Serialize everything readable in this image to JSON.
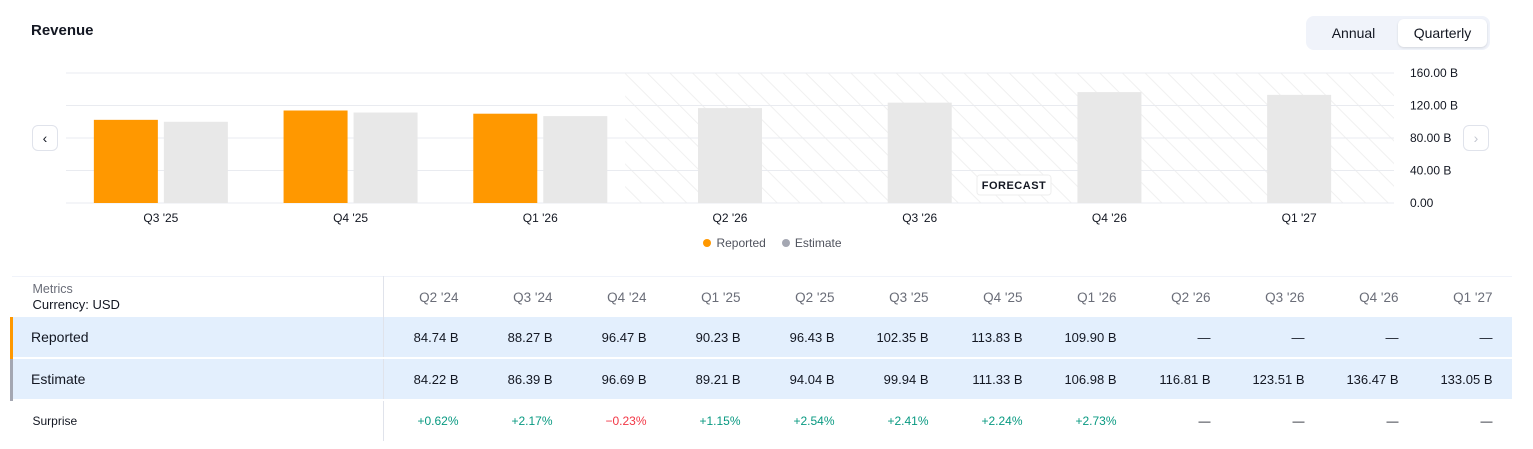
{
  "header": {
    "title": "Revenue",
    "period_toggle": {
      "options": [
        "Annual",
        "Quarterly"
      ],
      "selected": "Quarterly"
    }
  },
  "nav": {
    "prev_icon": "chevron-left-icon",
    "next_icon": "chevron-right-icon"
  },
  "chart_data": {
    "type": "bar",
    "categories": [
      "Q3 '25",
      "Q4 '25",
      "Q1 '26",
      "Q2 '26",
      "Q3 '26",
      "Q4 '26",
      "Q1 '27"
    ],
    "series": [
      {
        "name": "Reported",
        "color": "#ff9800",
        "values": [
          102.35,
          113.83,
          109.9,
          null,
          null,
          null,
          null
        ]
      },
      {
        "name": "Estimate",
        "color": "#e8e8e8",
        "values": [
          99.94,
          111.33,
          106.98,
          116.81,
          123.51,
          136.47,
          133.05
        ]
      }
    ],
    "y_ticks": [
      "160.00 B",
      "120.00 B",
      "80.00 B",
      "40.00 B",
      "0.00"
    ],
    "ylim": [
      0,
      160
    ],
    "forecast_label": "FORECAST",
    "forecast_start_category": "Q2 '26",
    "grid": true
  },
  "table": {
    "metrics_label": "Metrics",
    "currency_label": "Currency: USD",
    "columns": [
      "Q2 '24",
      "Q3 '24",
      "Q4 '24",
      "Q1 '25",
      "Q2 '25",
      "Q3 '25",
      "Q4 '25",
      "Q1 '26",
      "Q2 '26",
      "Q3 '26",
      "Q4 '26",
      "Q1 '27"
    ],
    "rows": [
      {
        "label": "Reported",
        "values": [
          "84.74 B",
          "88.27 B",
          "96.47 B",
          "90.23 B",
          "96.43 B",
          "102.35 B",
          "113.83 B",
          "109.90 B",
          "—",
          "—",
          "—",
          "—"
        ]
      },
      {
        "label": "Estimate",
        "values": [
          "84.22 B",
          "86.39 B",
          "96.69 B",
          "89.21 B",
          "94.04 B",
          "99.94 B",
          "111.33 B",
          "106.98 B",
          "116.81 B",
          "123.51 B",
          "136.47 B",
          "133.05 B"
        ]
      },
      {
        "label": "Surprise",
        "values": [
          "+0.62%",
          "+2.17%",
          "−0.23%",
          "+1.15%",
          "+2.54%",
          "+2.41%",
          "+2.24%",
          "+2.73%",
          "—",
          "—",
          "—",
          "—"
        ]
      }
    ]
  }
}
